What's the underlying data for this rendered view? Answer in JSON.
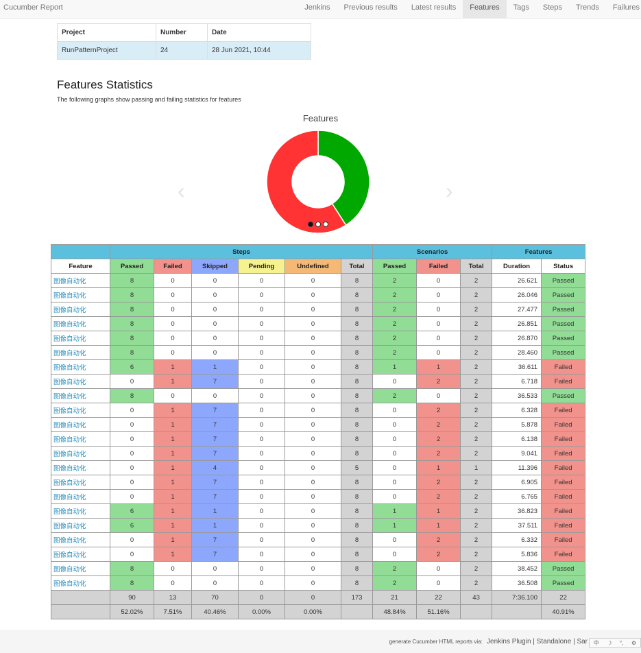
{
  "navbar": {
    "brand": "Cucumber Report",
    "items": [
      {
        "label": "Jenkins",
        "active": false
      },
      {
        "label": "Previous results",
        "active": false
      },
      {
        "label": "Latest results",
        "active": false
      },
      {
        "label": "Features",
        "active": true
      },
      {
        "label": "Tags",
        "active": false
      },
      {
        "label": "Steps",
        "active": false
      },
      {
        "label": "Trends",
        "active": false
      },
      {
        "label": "Failures",
        "active": false
      }
    ]
  },
  "build": {
    "headers": [
      "Project",
      "Number",
      "Date"
    ],
    "values": [
      "RunPatternProject",
      "24",
      "28 Jun 2021, 10:44"
    ]
  },
  "stats": {
    "title": "Features Statistics",
    "description": "The following graphs show passing and failing statistics for features"
  },
  "chart_data": {
    "type": "pie",
    "title": "Features",
    "categories": [
      "Passed",
      "Failed"
    ],
    "values": [
      9,
      13
    ],
    "colors": [
      "#00a800",
      "#ff3333"
    ],
    "donut": true,
    "carousel_slides": 3,
    "carousel_active": 0
  },
  "table": {
    "groups": [
      "",
      "Steps",
      "Scenarios",
      "Features"
    ],
    "headers": [
      "Feature",
      "Passed",
      "Failed",
      "Skipped",
      "Pending",
      "Undefined",
      "Total",
      "Passed",
      "Failed",
      "Total",
      "Duration",
      "Status"
    ],
    "rows": [
      [
        "图像自动化",
        "8",
        "0",
        "0",
        "0",
        "0",
        "8",
        "2",
        "0",
        "2",
        "26.621",
        "Passed"
      ],
      [
        "图像自动化",
        "8",
        "0",
        "0",
        "0",
        "0",
        "8",
        "2",
        "0",
        "2",
        "26.046",
        "Passed"
      ],
      [
        "图像自动化",
        "8",
        "0",
        "0",
        "0",
        "0",
        "8",
        "2",
        "0",
        "2",
        "27.477",
        "Passed"
      ],
      [
        "图像自动化",
        "8",
        "0",
        "0",
        "0",
        "0",
        "8",
        "2",
        "0",
        "2",
        "26.851",
        "Passed"
      ],
      [
        "图像自动化",
        "8",
        "0",
        "0",
        "0",
        "0",
        "8",
        "2",
        "0",
        "2",
        "26.870",
        "Passed"
      ],
      [
        "图像自动化",
        "8",
        "0",
        "0",
        "0",
        "0",
        "8",
        "2",
        "0",
        "2",
        "28.460",
        "Passed"
      ],
      [
        "图像自动化",
        "6",
        "1",
        "1",
        "0",
        "0",
        "8",
        "1",
        "1",
        "2",
        "36.611",
        "Failed"
      ],
      [
        "图像自动化",
        "0",
        "1",
        "7",
        "0",
        "0",
        "8",
        "0",
        "2",
        "2",
        "6.718",
        "Failed"
      ],
      [
        "图像自动化",
        "8",
        "0",
        "0",
        "0",
        "0",
        "8",
        "2",
        "0",
        "2",
        "36.533",
        "Passed"
      ],
      [
        "图像自动化",
        "0",
        "1",
        "7",
        "0",
        "0",
        "8",
        "0",
        "2",
        "2",
        "6.328",
        "Failed"
      ],
      [
        "图像自动化",
        "0",
        "1",
        "7",
        "0",
        "0",
        "8",
        "0",
        "2",
        "2",
        "5.878",
        "Failed"
      ],
      [
        "图像自动化",
        "0",
        "1",
        "7",
        "0",
        "0",
        "8",
        "0",
        "2",
        "2",
        "6.138",
        "Failed"
      ],
      [
        "图像自动化",
        "0",
        "1",
        "7",
        "0",
        "0",
        "8",
        "0",
        "2",
        "2",
        "9.041",
        "Failed"
      ],
      [
        "图像自动化",
        "0",
        "1",
        "4",
        "0",
        "0",
        "5",
        "0",
        "1",
        "1",
        "11.396",
        "Failed"
      ],
      [
        "图像自动化",
        "0",
        "1",
        "7",
        "0",
        "0",
        "8",
        "0",
        "2",
        "2",
        "6.905",
        "Failed"
      ],
      [
        "图像自动化",
        "0",
        "1",
        "7",
        "0",
        "0",
        "8",
        "0",
        "2",
        "2",
        "6.765",
        "Failed"
      ],
      [
        "图像自动化",
        "6",
        "1",
        "1",
        "0",
        "0",
        "8",
        "1",
        "1",
        "2",
        "36.823",
        "Failed"
      ],
      [
        "图像自动化",
        "6",
        "1",
        "1",
        "0",
        "0",
        "8",
        "1",
        "1",
        "2",
        "37.511",
        "Failed"
      ],
      [
        "图像自动化",
        "0",
        "1",
        "7",
        "0",
        "0",
        "8",
        "0",
        "2",
        "2",
        "6.332",
        "Failed"
      ],
      [
        "图像自动化",
        "0",
        "1",
        "7",
        "0",
        "0",
        "8",
        "0",
        "2",
        "2",
        "5.836",
        "Failed"
      ],
      [
        "图像自动化",
        "8",
        "0",
        "0",
        "0",
        "0",
        "8",
        "2",
        "0",
        "2",
        "38.452",
        "Passed"
      ],
      [
        "图像自动化",
        "8",
        "0",
        "0",
        "0",
        "0",
        "8",
        "2",
        "0",
        "2",
        "36.508",
        "Passed"
      ]
    ],
    "totals": [
      "",
      "90",
      "13",
      "70",
      "0",
      "0",
      "173",
      "21",
      "22",
      "43",
      "7:36.100",
      "22"
    ],
    "percentages": [
      "",
      "52.02%",
      "7.51%",
      "40.46%",
      "0.00%",
      "0.00%",
      "",
      "48.84%",
      "51.16%",
      "",
      "",
      "40.91%"
    ]
  },
  "footer": {
    "prefix": "generate Cucumber HTML reports via:",
    "links": "Jenkins Plugin | Standalone | Sar"
  },
  "ime_bar": [
    "中",
    "☽",
    "°,",
    "⚙"
  ],
  "colors": {
    "passed": "#92dd96",
    "failed": "#f2928c",
    "skipped": "#8da7fc",
    "pending": "#f5f28f",
    "undefined": "#f5b975",
    "total": "#d3d3d3",
    "group_header": "#5bc0de"
  }
}
